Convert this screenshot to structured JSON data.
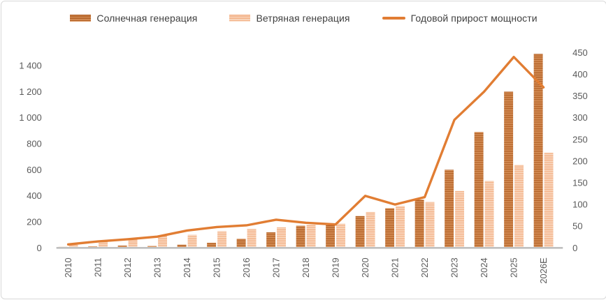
{
  "chart_data": {
    "type": "combo",
    "subtype": "bar+line, dual axis",
    "categories": [
      "2010",
      "2011",
      "2012",
      "2013",
      "2014",
      "2015",
      "2016",
      "2017",
      "2018",
      "2019",
      "2020",
      "2021",
      "2022",
      "2023",
      "2024",
      "2025",
      "2026E"
    ],
    "series": [
      {
        "name": "Солнечная генерация",
        "type": "bar",
        "axis": "left",
        "values": [
          8,
          12,
          18,
          15,
          25,
          40,
          70,
          120,
          170,
          175,
          245,
          305,
          370,
          600,
          890,
          1200,
          1490
        ]
      },
      {
        "name": "Ветряная генерация",
        "type": "bar",
        "axis": "left",
        "values": [
          27,
          48,
          63,
          92,
          100,
          128,
          145,
          158,
          178,
          185,
          277,
          322,
          352,
          437,
          515,
          638,
          732
        ]
      },
      {
        "name": "Годовой прирост мощности",
        "type": "line",
        "axis": "right",
        "values": [
          8,
          15,
          20,
          26,
          40,
          48,
          52,
          65,
          58,
          54,
          120,
          100,
          117,
          295,
          360,
          440,
          370
        ]
      }
    ],
    "left_axis": {
      "ticks": [
        0,
        200,
        400,
        600,
        800,
        1000,
        1200,
        1400
      ],
      "labels": [
        "0",
        "200",
        "400",
        "600",
        "800",
        "1 000",
        "1 200",
        "1 400"
      ],
      "max": 1600
    },
    "right_axis": {
      "ticks": [
        0,
        50,
        100,
        150,
        200,
        250,
        300,
        350,
        400,
        450
      ],
      "labels": [
        "0",
        "50",
        "100",
        "150",
        "200",
        "250",
        "300",
        "350",
        "400",
        "450"
      ],
      "max": 480
    },
    "grid": false,
    "legend_position": "top"
  },
  "colors": {
    "solar_stripe_dark": "#ad5a1e",
    "solar_stripe_light": "#df9c66",
    "wind_stripe_dark": "#f2ab7e",
    "wind_stripe_light": "#fbe3d0",
    "line": "#e17d33",
    "axis_text": "#595959",
    "legend_text": "#3f3f3f",
    "axis_line": "#bfbfbf",
    "border": "#d9d9d9",
    "background": "#ffffff"
  }
}
